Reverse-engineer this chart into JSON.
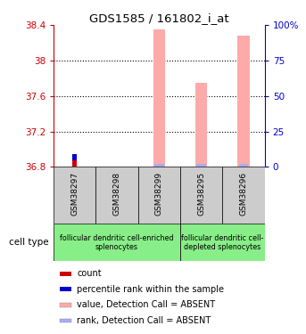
{
  "title": "GDS1585 / 161802_i_at",
  "samples": [
    "GSM38297",
    "GSM38298",
    "GSM38299",
    "GSM38295",
    "GSM38296"
  ],
  "ylim_left": [
    36.8,
    38.4
  ],
  "ylim_right": [
    0,
    100
  ],
  "yticks_left": [
    36.8,
    37.2,
    37.6,
    38.0,
    38.4
  ],
  "yticks_right": [
    0,
    25,
    50,
    75,
    100
  ],
  "ytick_labels_left": [
    "36.8",
    "37.2",
    "37.6",
    "38",
    "38.4"
  ],
  "ytick_labels_right": [
    "0",
    "25",
    "50",
    "75",
    "100%"
  ],
  "left_axis_color": "#cc0000",
  "right_axis_color": "#0000cc",
  "value_bars": [
    null,
    null,
    38.35,
    37.75,
    38.28
  ],
  "rank_bars": [
    null,
    null,
    36.83,
    36.83,
    36.83
  ],
  "pink_color": "#ffaaaa",
  "lavender_color": "#aaaaff",
  "red_color": "#cc0000",
  "blue_color": "#0000cc",
  "group1_label": "follicular dendritic cell-enriched\nsplenocytes",
  "group2_label": "follicular dendritic cell-\ndepleted splenocytes",
  "group1_color": "#88ee88",
  "group2_color": "#88ee88",
  "cell_type_label": "cell type",
  "legend_items": [
    {
      "color": "#cc0000",
      "label": "count"
    },
    {
      "color": "#0000cc",
      "label": "percentile rank within the sample"
    },
    {
      "color": "#ffaaaa",
      "label": "value, Detection Call = ABSENT"
    },
    {
      "color": "#aaaaff",
      "label": "rank, Detection Call = ABSENT"
    }
  ]
}
